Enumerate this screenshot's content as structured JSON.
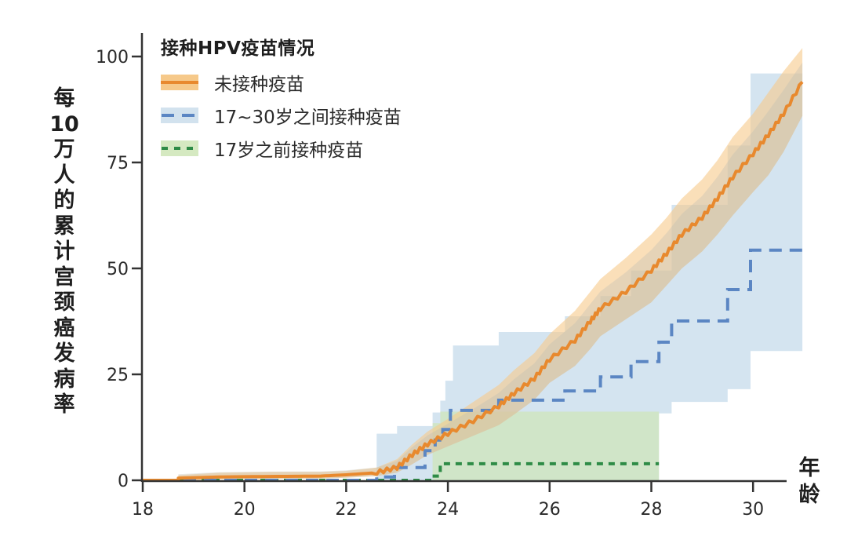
{
  "chart_data": {
    "type": "line",
    "title": "",
    "xlabel": "年龄",
    "ylabel": "每10万人的累计宫颈癌发病率",
    "xlim": [
      18,
      31
    ],
    "ylim": [
      0,
      105
    ],
    "x_ticks": [
      18,
      20,
      22,
      24,
      26,
      28,
      30
    ],
    "y_ticks": [
      0,
      25,
      50,
      75,
      100
    ],
    "grid": false,
    "legend": {
      "title": "接种HPV疫苗情况",
      "position": "upper-left",
      "entries": [
        "未接种疫苗",
        "17~30岁之间接种疫苗",
        "17岁之前接种疫苗"
      ]
    },
    "series": [
      {
        "name": "未接种疫苗",
        "style": "solid",
        "color": "#e8892e",
        "band_color": "#f6c98a",
        "x": [
          18.7,
          19.5,
          20.5,
          21.5,
          22.0,
          22.6,
          23.0,
          23.3,
          23.6,
          24.0,
          24.5,
          25.0,
          25.3,
          25.7,
          26.0,
          26.5,
          26.8,
          27.0,
          27.5,
          28.0,
          28.3,
          28.6,
          29.0,
          29.3,
          29.6,
          30.0,
          30.3,
          30.6,
          30.97
        ],
        "y": [
          0.5,
          0.8,
          0.9,
          1.0,
          1.3,
          1.8,
          3.0,
          6.0,
          8.5,
          11.0,
          14.0,
          17.5,
          20.5,
          24.0,
          28.5,
          33.0,
          37.5,
          40.5,
          44.5,
          49.5,
          53.5,
          58.0,
          62.0,
          66.5,
          71.5,
          77.0,
          81.5,
          86.5,
          94.0
        ],
        "ci_upper": [
          1.2,
          1.8,
          2.0,
          2.0,
          2.2,
          3.0,
          5.0,
          8.5,
          11.5,
          14.5,
          18.5,
          22.5,
          26.0,
          30.0,
          34.5,
          40.0,
          44.5,
          47.5,
          52.5,
          58.0,
          62.0,
          66.5,
          71.0,
          75.5,
          81.0,
          86.5,
          91.5,
          96.5,
          102.0
        ],
        "ci_lower": [
          0.0,
          0.2,
          0.3,
          0.4,
          0.6,
          1.0,
          1.8,
          3.8,
          6.0,
          8.0,
          10.5,
          13.0,
          15.5,
          19.0,
          23.0,
          27.0,
          31.0,
          34.0,
          38.0,
          42.0,
          46.0,
          50.0,
          54.0,
          58.0,
          62.5,
          68.0,
          72.0,
          77.5,
          86.0
        ]
      },
      {
        "name": "17~30岁之间接种疫苗",
        "style": "dashed",
        "color": "#5b86c3",
        "band_color": "#b9d3e6",
        "step_x": [
          18.0,
          22.6,
          22.95,
          23.55,
          23.75,
          23.9,
          24.05,
          25.0,
          26.3,
          27.0,
          27.6,
          28.15,
          28.4,
          29.5,
          29.95,
          31.0
        ],
        "step_y": [
          0,
          0.8,
          3.0,
          7.0,
          9.5,
          12.0,
          16.5,
          18.9,
          21.1,
          24.4,
          28.0,
          32.6,
          37.6,
          45.0,
          54.3,
          54.3
        ],
        "ci_upper_x": [
          22.6,
          23.0,
          23.7,
          23.85,
          23.95,
          24.1,
          25.0,
          26.3,
          27.0,
          27.6,
          28.4,
          29.5,
          29.95,
          31.0
        ],
        "ci_upper": [
          11.0,
          12.8,
          16.0,
          18.8,
          23.5,
          31.8,
          35.0,
          38.7,
          43.5,
          49.5,
          65.0,
          79.0,
          96.0,
          96.0
        ],
        "ci_lower_x": [
          22.6,
          28.15,
          28.4,
          29.5,
          29.95,
          31.0
        ],
        "ci_lower": [
          0,
          15.8,
          18.5,
          21.5,
          30.5,
          30.5
        ]
      },
      {
        "name": "17岁之前接种疫苗",
        "style": "dotted",
        "color": "#2e8b46",
        "band_color": "#cfe5b6",
        "step_x": [
          18.0,
          23.7,
          23.85,
          28.15
        ],
        "step_y": [
          0,
          1.0,
          3.9,
          3.9
        ],
        "ci_upper_x": [
          23.7,
          23.85,
          28.15
        ],
        "ci_upper": [
          13.5,
          16.2,
          16.2
        ],
        "ci_lower": 0
      }
    ]
  },
  "labels": {
    "y_axis_chars": [
      "每",
      "10",
      "万",
      "人",
      "的",
      "累",
      "计",
      "宫",
      "颈",
      "癌",
      "发",
      "病",
      "率"
    ],
    "x_axis_chars": [
      "年",
      "龄"
    ],
    "legend_title": "接种HPV疫苗情况",
    "legend_items": [
      "未接种疫苗",
      "17~30岁之间接种疫苗",
      "17岁之前接种疫苗"
    ]
  }
}
